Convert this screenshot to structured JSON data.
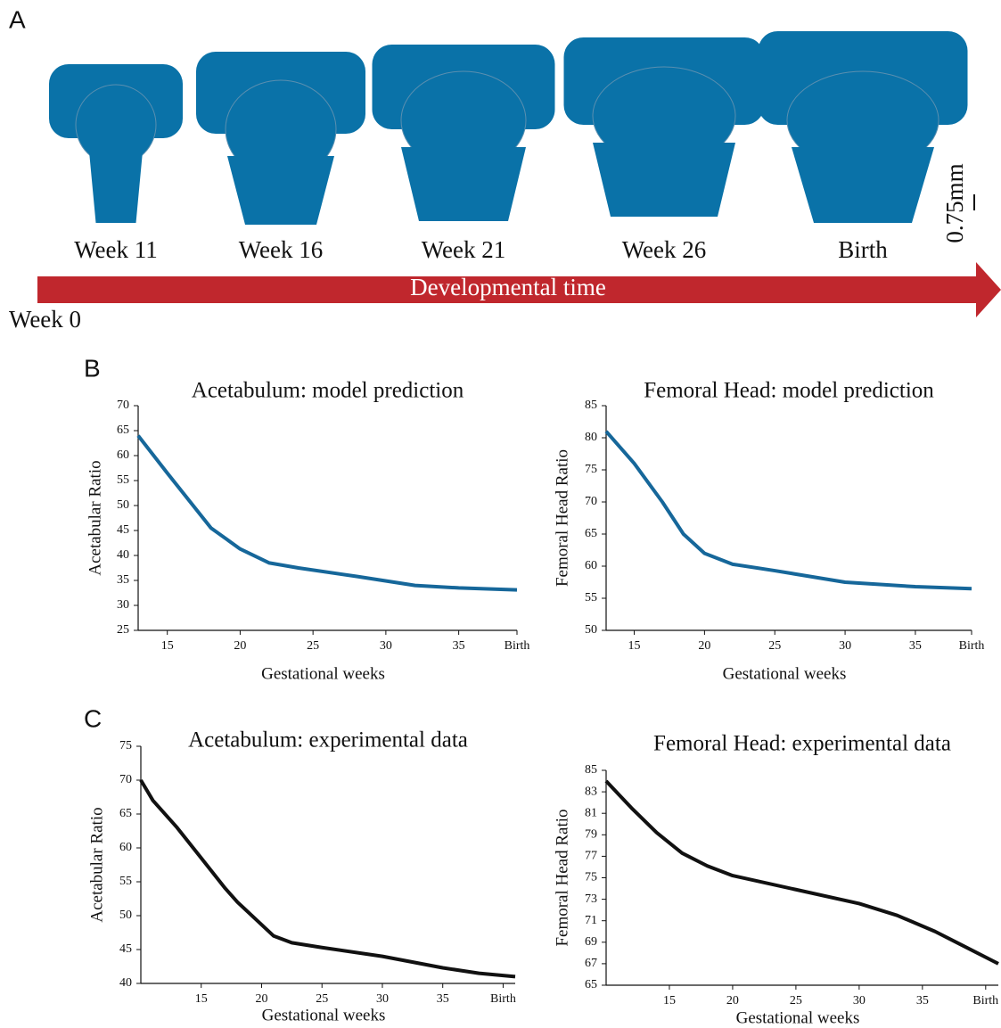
{
  "panel_labels": [
    "A",
    "B",
    "C"
  ],
  "panel_a": {
    "stages": [
      "Week 11",
      "Week 16",
      "Week 21",
      "Week 26",
      "Birth"
    ],
    "arrow_label": "Developmental time",
    "start_label": "Week 0",
    "scale_label": "0.75mm"
  },
  "chart_data": [
    {
      "type": "line",
      "title": "Acetabulum: model prediction",
      "xlabel": "Gestational weeks",
      "ylabel": "Acetabular Ratio",
      "x": [
        13,
        15,
        18,
        20,
        22,
        24,
        28,
        32,
        35,
        39
      ],
      "series": [
        {
          "color": "#16679a",
          "values": [
            64,
            56.5,
            45.5,
            41.3,
            38.5,
            37.5,
            35.8,
            34,
            33.5,
            33.1
          ]
        }
      ],
      "xlim": [
        13,
        39
      ],
      "xticks": [
        15,
        20,
        25,
        30,
        35,
        {
          "value": 39,
          "label": "Birth"
        }
      ],
      "ylim": [
        25,
        70
      ],
      "yticks": [
        25,
        30,
        35,
        40,
        45,
        50,
        55,
        60,
        65,
        70
      ]
    },
    {
      "type": "line",
      "title": "Femoral Head: model prediction",
      "xlabel": "Gestational weeks",
      "ylabel": "Femoral Head Ratio",
      "x": [
        13,
        15,
        17,
        18.5,
        20,
        22,
        25,
        30,
        35,
        39
      ],
      "series": [
        {
          "color": "#16679a",
          "values": [
            81,
            76,
            70,
            65,
            62,
            60.3,
            59.3,
            57.5,
            56.8,
            56.5
          ]
        }
      ],
      "xlim": [
        13,
        39
      ],
      "xticks": [
        15,
        20,
        25,
        30,
        35,
        {
          "value": 39,
          "label": "Birth"
        }
      ],
      "ylim": [
        50,
        85
      ],
      "yticks": [
        50,
        55,
        60,
        65,
        70,
        75,
        80,
        85
      ]
    },
    {
      "type": "line",
      "title": "Acetabulum: experimental data",
      "xlabel": "Gestational weeks",
      "ylabel": "Acetabular Ratio",
      "x": [
        10,
        11,
        13,
        15,
        17,
        18,
        19.5,
        21,
        22.5,
        25,
        30,
        35,
        38,
        41
      ],
      "series": [
        {
          "color": "#111111",
          "values": [
            70,
            67,
            63,
            58.5,
            54,
            52,
            49.5,
            47,
            46,
            45.3,
            44,
            42.3,
            41.5,
            41
          ]
        }
      ],
      "xlim": [
        10,
        41
      ],
      "xticks": [
        15,
        20,
        25,
        30,
        35,
        {
          "value": 40,
          "label": "Birth"
        }
      ],
      "ylim": [
        40,
        75
      ],
      "yticks": [
        40,
        45,
        50,
        55,
        60,
        65,
        70,
        75
      ]
    },
    {
      "type": "line",
      "title": "Femoral Head: experimental data",
      "xlabel": "Gestational weeks",
      "ylabel": "Femoral Head Ratio",
      "x": [
        10,
        12,
        14,
        16,
        18,
        20,
        25,
        30,
        33,
        36,
        38,
        41
      ],
      "series": [
        {
          "color": "#111111",
          "values": [
            84,
            81.5,
            79.2,
            77.3,
            76.1,
            75.2,
            73.9,
            72.6,
            71.5,
            70,
            68.8,
            67
          ]
        }
      ],
      "xlim": [
        10,
        41
      ],
      "xticks": [
        15,
        20,
        25,
        30,
        35,
        {
          "value": 40,
          "label": "Birth"
        }
      ],
      "ylim": [
        65,
        85
      ],
      "yticks": [
        65,
        67,
        69,
        71,
        73,
        75,
        77,
        79,
        81,
        83,
        85
      ]
    }
  ]
}
